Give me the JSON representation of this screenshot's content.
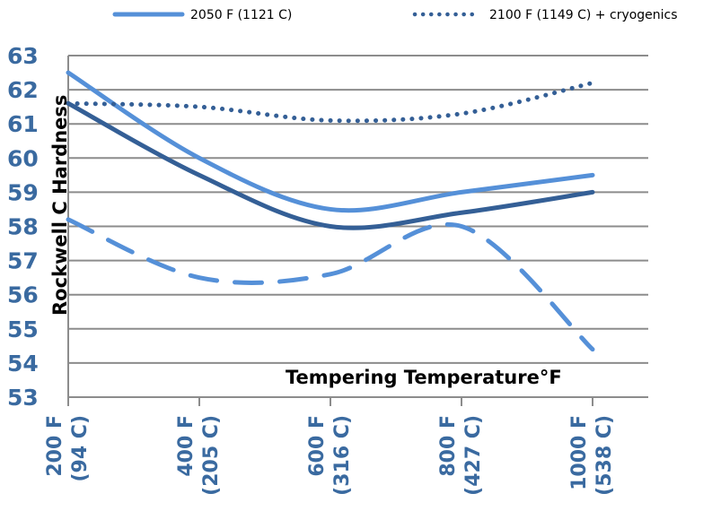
{
  "chart_data": {
    "type": "line",
    "title": "",
    "xlabel": "Tempering Temperature°F",
    "ylabel": "Rockwell C Hardness",
    "categories": [
      "200 F (94 C)",
      "400 F (205 C)",
      "600 F (316 C)",
      "800 F (427 C)",
      "1000 F (538 C)"
    ],
    "x_tick_labels": [
      {
        "line1": "200 F",
        "line2": "(94 C)"
      },
      {
        "line1": "400 F",
        "line2": "(205 C)"
      },
      {
        "line1": "600 F",
        "line2": "(316 C)"
      },
      {
        "line1": "800 F",
        "line2": "(427 C)"
      },
      {
        "line1": "1000 F",
        "line2": "(538 C)"
      }
    ],
    "ylim": [
      53,
      63
    ],
    "y_ticks": [
      53,
      54,
      55,
      56,
      57,
      58,
      59,
      60,
      61,
      62,
      63
    ],
    "grid": true,
    "legend_position": "top",
    "series": [
      {
        "name": "2050 F (1121 C)",
        "style": "solid",
        "color": "#5590d8",
        "in_legend": true,
        "values": [
          62.5,
          60.0,
          58.5,
          59.0,
          59.5
        ]
      },
      {
        "name": "2100 F (1149 C) + cryogenics",
        "style": "dotted",
        "color": "#345f96",
        "in_legend": true,
        "values": [
          61.6,
          61.5,
          61.1,
          61.3,
          62.2
        ]
      },
      {
        "name": "dark solid series",
        "style": "solid",
        "color": "#345f96",
        "in_legend": false,
        "values": [
          61.6,
          59.5,
          58.0,
          58.4,
          59.0
        ]
      },
      {
        "name": "dashed series",
        "style": "dashed",
        "color": "#5590d8",
        "in_legend": false,
        "values": [
          58.2,
          56.5,
          56.6,
          58.0,
          54.4
        ]
      }
    ]
  }
}
